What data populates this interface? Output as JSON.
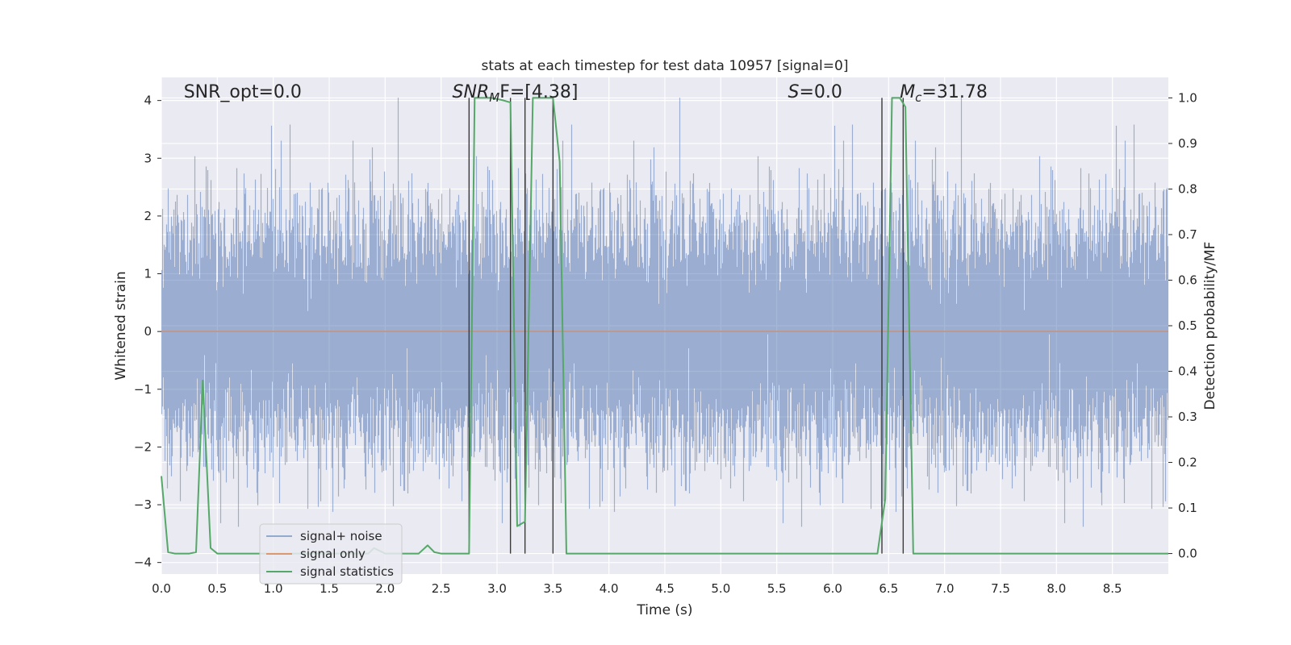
{
  "chart_data": {
    "type": "line",
    "title": "stats at each timestep for test data 10957 [signal=0]",
    "xlabel": "Time (s)",
    "ylabel": "Whitened strain",
    "y2label": "Detection probability/MF",
    "xlim": [
      0.0,
      9.0
    ],
    "ylim": [
      -4.2,
      4.4
    ],
    "y2lim": [
      -0.045,
      1.045
    ],
    "xticks": [
      "0.0",
      "0.5",
      "1.0",
      "1.5",
      "2.0",
      "2.5",
      "3.0",
      "3.5",
      "4.0",
      "4.5",
      "5.0",
      "5.5",
      "6.0",
      "6.5",
      "7.0",
      "7.5",
      "8.0",
      "8.5"
    ],
    "yticks": [
      "−4",
      "−3",
      "−2",
      "−1",
      "0",
      "1",
      "2",
      "3",
      "4"
    ],
    "y2ticks": [
      "0.0",
      "0.1",
      "0.2",
      "0.3",
      "0.4",
      "0.5",
      "0.6",
      "0.7",
      "0.8",
      "0.9",
      "1.0"
    ],
    "grid": true,
    "legend_position": "lower-left",
    "colors": {
      "background": "#eaeaf2",
      "grid": "#ffffff",
      "noise": "#4c72b0",
      "signal_only": "#dd8452",
      "statistics": "#55a868",
      "vlines": "#3a3a3a"
    },
    "annotations": [
      {
        "key": "snr_opt",
        "text": "SNR_opt=0.0",
        "x": 0.2,
        "y": 4.05
      },
      {
        "key": "snr_mf",
        "main": "SNR",
        "sub": "M",
        "tail": "F=[4.38]",
        "x": 2.6,
        "y": 4.05
      },
      {
        "key": "s",
        "main": "S",
        "tail": "=0.0",
        "x": 5.6,
        "y": 4.05
      },
      {
        "key": "mc",
        "main": "M",
        "sub": "c",
        "tail": "=31.78",
        "x": 6.6,
        "y": 4.05
      }
    ],
    "series": [
      {
        "name": "signal+ noise",
        "kind": "noise",
        "sample_rate": 2048,
        "sigma": 1.0,
        "note_values": "dense whitened-noise trace; drawn as min/max envelope"
      },
      {
        "name": "signal only",
        "kind": "line",
        "x": [
          0.0,
          9.0
        ],
        "y": [
          0.0,
          0.0
        ]
      },
      {
        "name": "signal statistics",
        "kind": "line",
        "axis": "right",
        "x": [
          0.0,
          0.06,
          0.12,
          0.25,
          0.31,
          0.37,
          0.44,
          0.5,
          1.0,
          1.5,
          1.7,
          1.85,
          1.9,
          2.0,
          2.2,
          2.3,
          2.38,
          2.44,
          2.5,
          2.6,
          2.75,
          2.8,
          2.85,
          2.95,
          3.05,
          3.12,
          3.18,
          3.25,
          3.32,
          3.38,
          3.44,
          3.5,
          3.56,
          3.62,
          3.7,
          4.0,
          5.0,
          6.0,
          6.4,
          6.47,
          6.53,
          6.6,
          6.65,
          6.72,
          6.8,
          7.0,
          8.0,
          9.0
        ],
        "y": [
          0.17,
          0.003,
          0.0,
          0.0,
          0.003,
          0.38,
          0.012,
          0.0,
          0.0,
          0.0,
          0.0,
          0.0,
          0.012,
          0.0,
          0.0,
          0.0,
          0.018,
          0.003,
          0.0,
          0.0,
          0.0,
          1.0,
          1.0,
          1.0,
          0.995,
          0.99,
          0.06,
          0.07,
          1.0,
          1.0,
          1.0,
          1.0,
          0.86,
          0.0,
          0.0,
          0.0,
          0.0,
          0.0,
          0.0,
          0.12,
          1.0,
          1.0,
          0.98,
          0.0,
          0.0,
          0.0,
          0.0,
          0.0
        ]
      }
    ],
    "vertical_lines_x": [
      2.75,
      3.12,
      3.25,
      3.5,
      6.44,
      6.63
    ]
  }
}
